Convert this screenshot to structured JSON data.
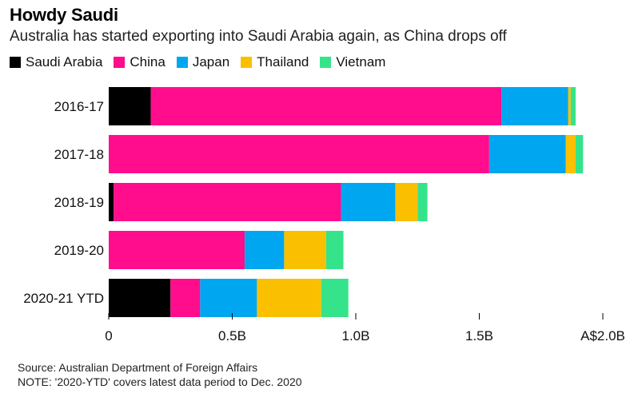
{
  "header": {
    "title": "Howdy Saudi",
    "subtitle": "Australia has started exporting into Saudi Arabia again, as China drops off"
  },
  "chart_data": {
    "type": "bar",
    "orientation": "horizontal",
    "stacked": true,
    "categories": [
      "2016-17",
      "2017-18",
      "2018-19",
      "2019-20",
      "2020-21 YTD"
    ],
    "series": [
      {
        "name": "Saudi Arabia",
        "color": "#000000",
        "values": [
          0.17,
          0.0,
          0.02,
          0.0,
          0.25
        ]
      },
      {
        "name": "China",
        "color": "#ff0d8c",
        "values": [
          1.42,
          1.54,
          0.92,
          0.55,
          0.12
        ]
      },
      {
        "name": "Japan",
        "color": "#00a6ef",
        "values": [
          0.27,
          0.31,
          0.22,
          0.16,
          0.23
        ]
      },
      {
        "name": "Thailand",
        "color": "#fac000",
        "values": [
          0.01,
          0.04,
          0.09,
          0.17,
          0.26
        ]
      },
      {
        "name": "Vietnam",
        "color": "#35e48a",
        "values": [
          0.02,
          0.03,
          0.04,
          0.07,
          0.11
        ]
      }
    ],
    "xlim": [
      0,
      2.0
    ],
    "xticks": [
      {
        "value": 0,
        "label": "0"
      },
      {
        "value": 0.5,
        "label": "0.5B"
      },
      {
        "value": 1.0,
        "label": "1.0B"
      },
      {
        "value": 1.5,
        "label": "1.5B"
      },
      {
        "value": 2.0,
        "label": "A$2.0B"
      }
    ],
    "xlabel": "",
    "ylabel": "",
    "legend_position": "top-left",
    "grid": false
  },
  "footer": {
    "source": "Source: Australian Department of Foreign Affairs",
    "note": "NOTE: '2020-YTD' covers latest data period to Dec. 2020"
  }
}
